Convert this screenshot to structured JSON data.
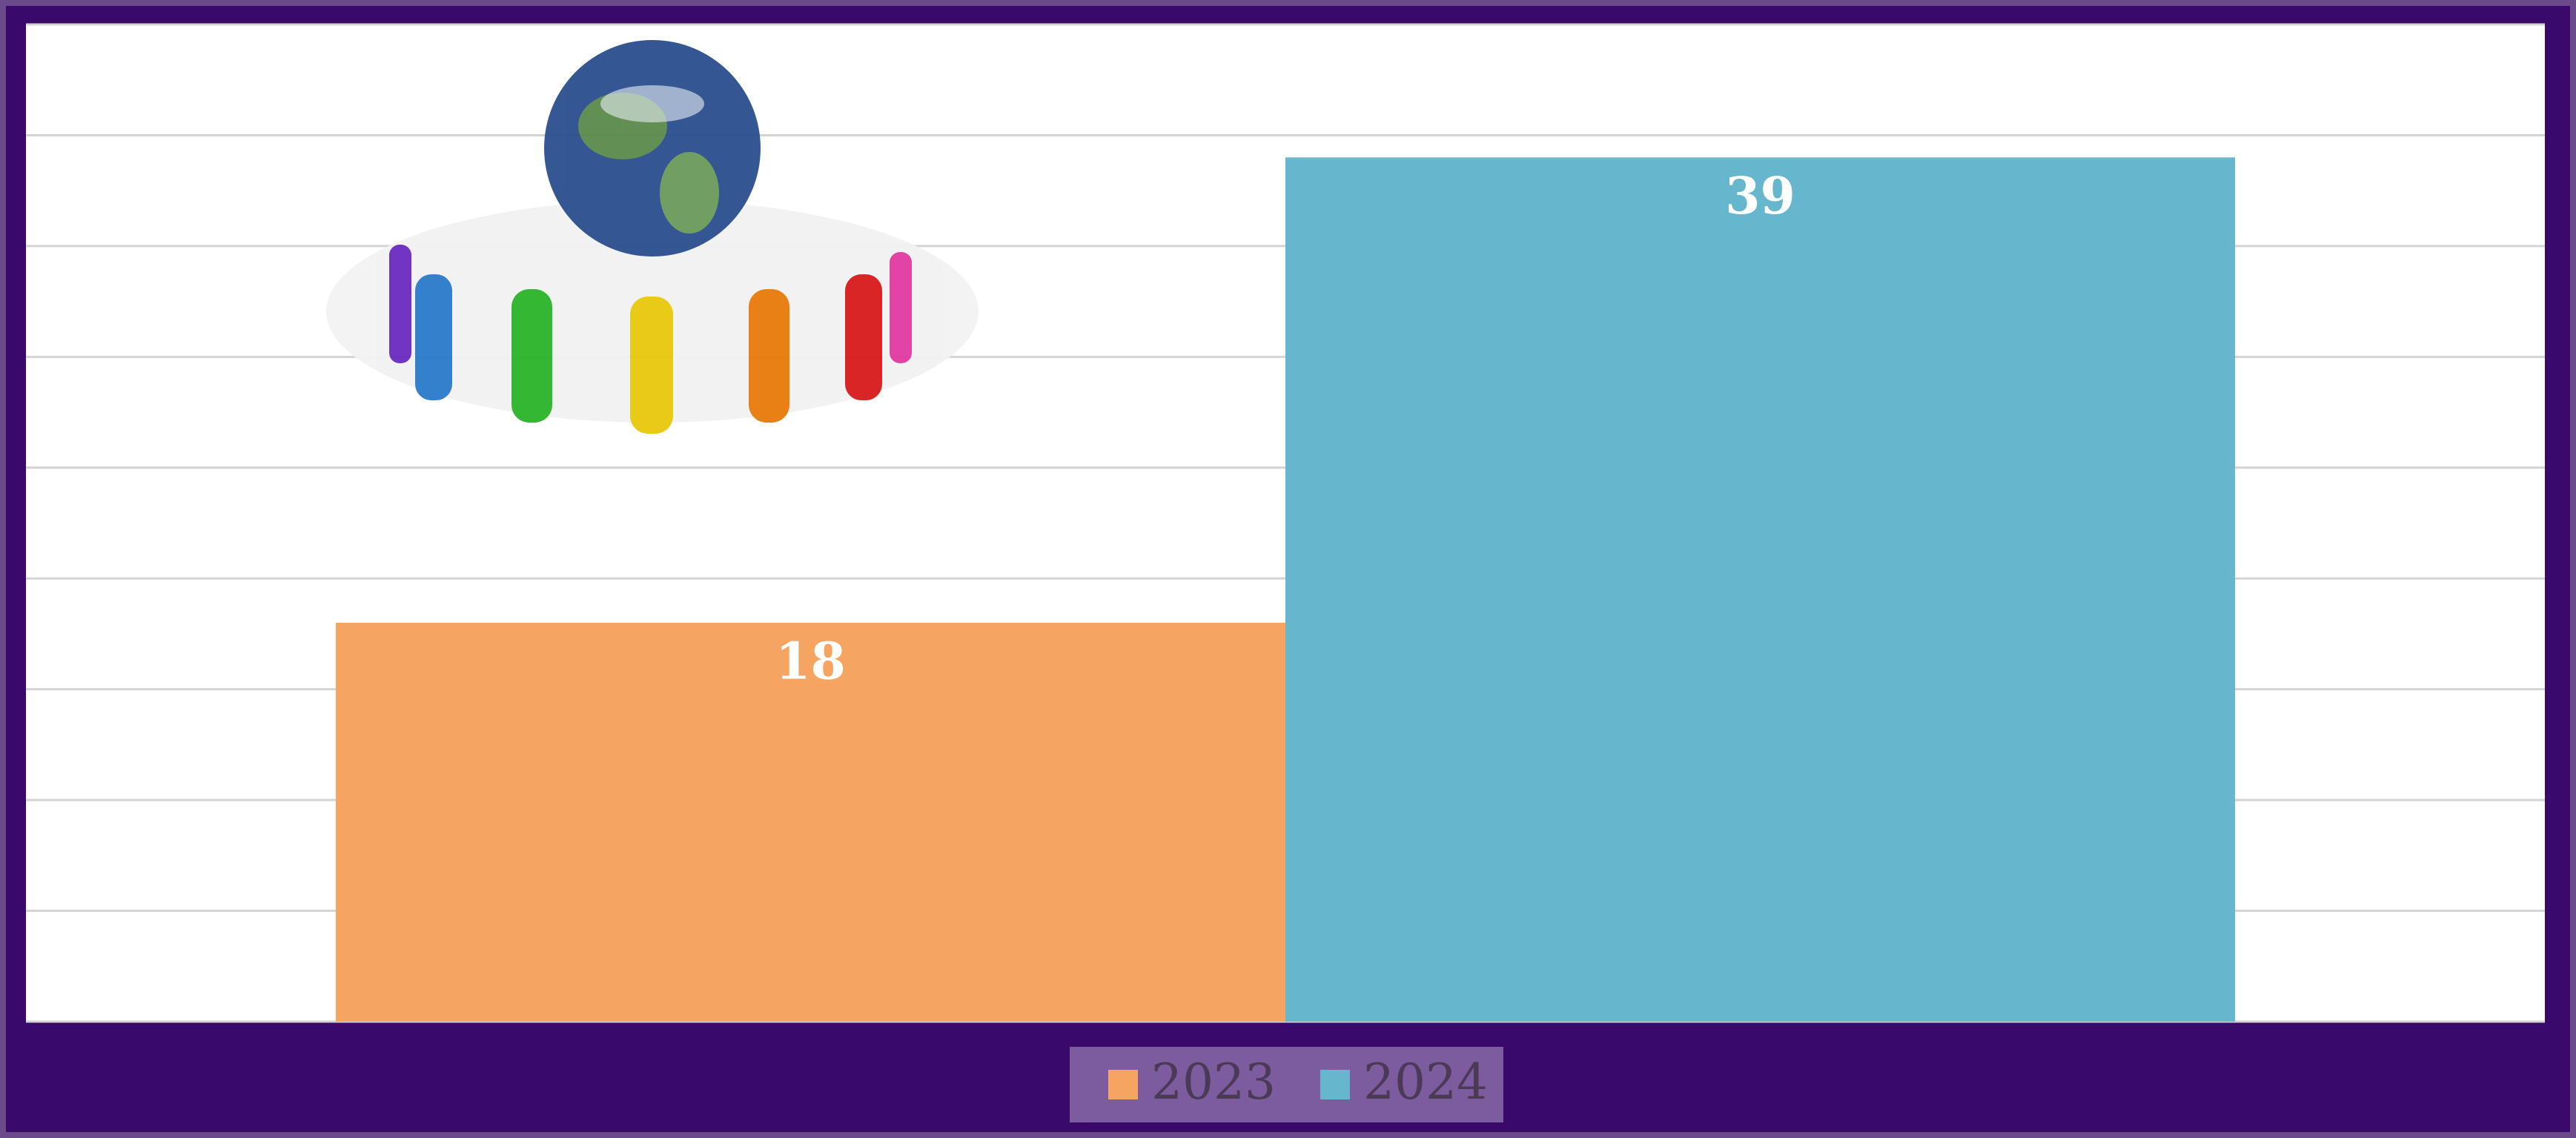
{
  "chart_data": {
    "type": "bar",
    "categories": [
      null
    ],
    "series": [
      {
        "name": "2023",
        "color": "#f5a461",
        "values": [
          18
        ]
      },
      {
        "name": "2024",
        "color": "#66b6cd",
        "values": [
          39
        ]
      }
    ],
    "ylim": [
      0,
      45
    ],
    "yticks": [
      0,
      5,
      10,
      15,
      20,
      25,
      30,
      35,
      40,
      45
    ],
    "grid": true,
    "legend": "bottom"
  }
}
